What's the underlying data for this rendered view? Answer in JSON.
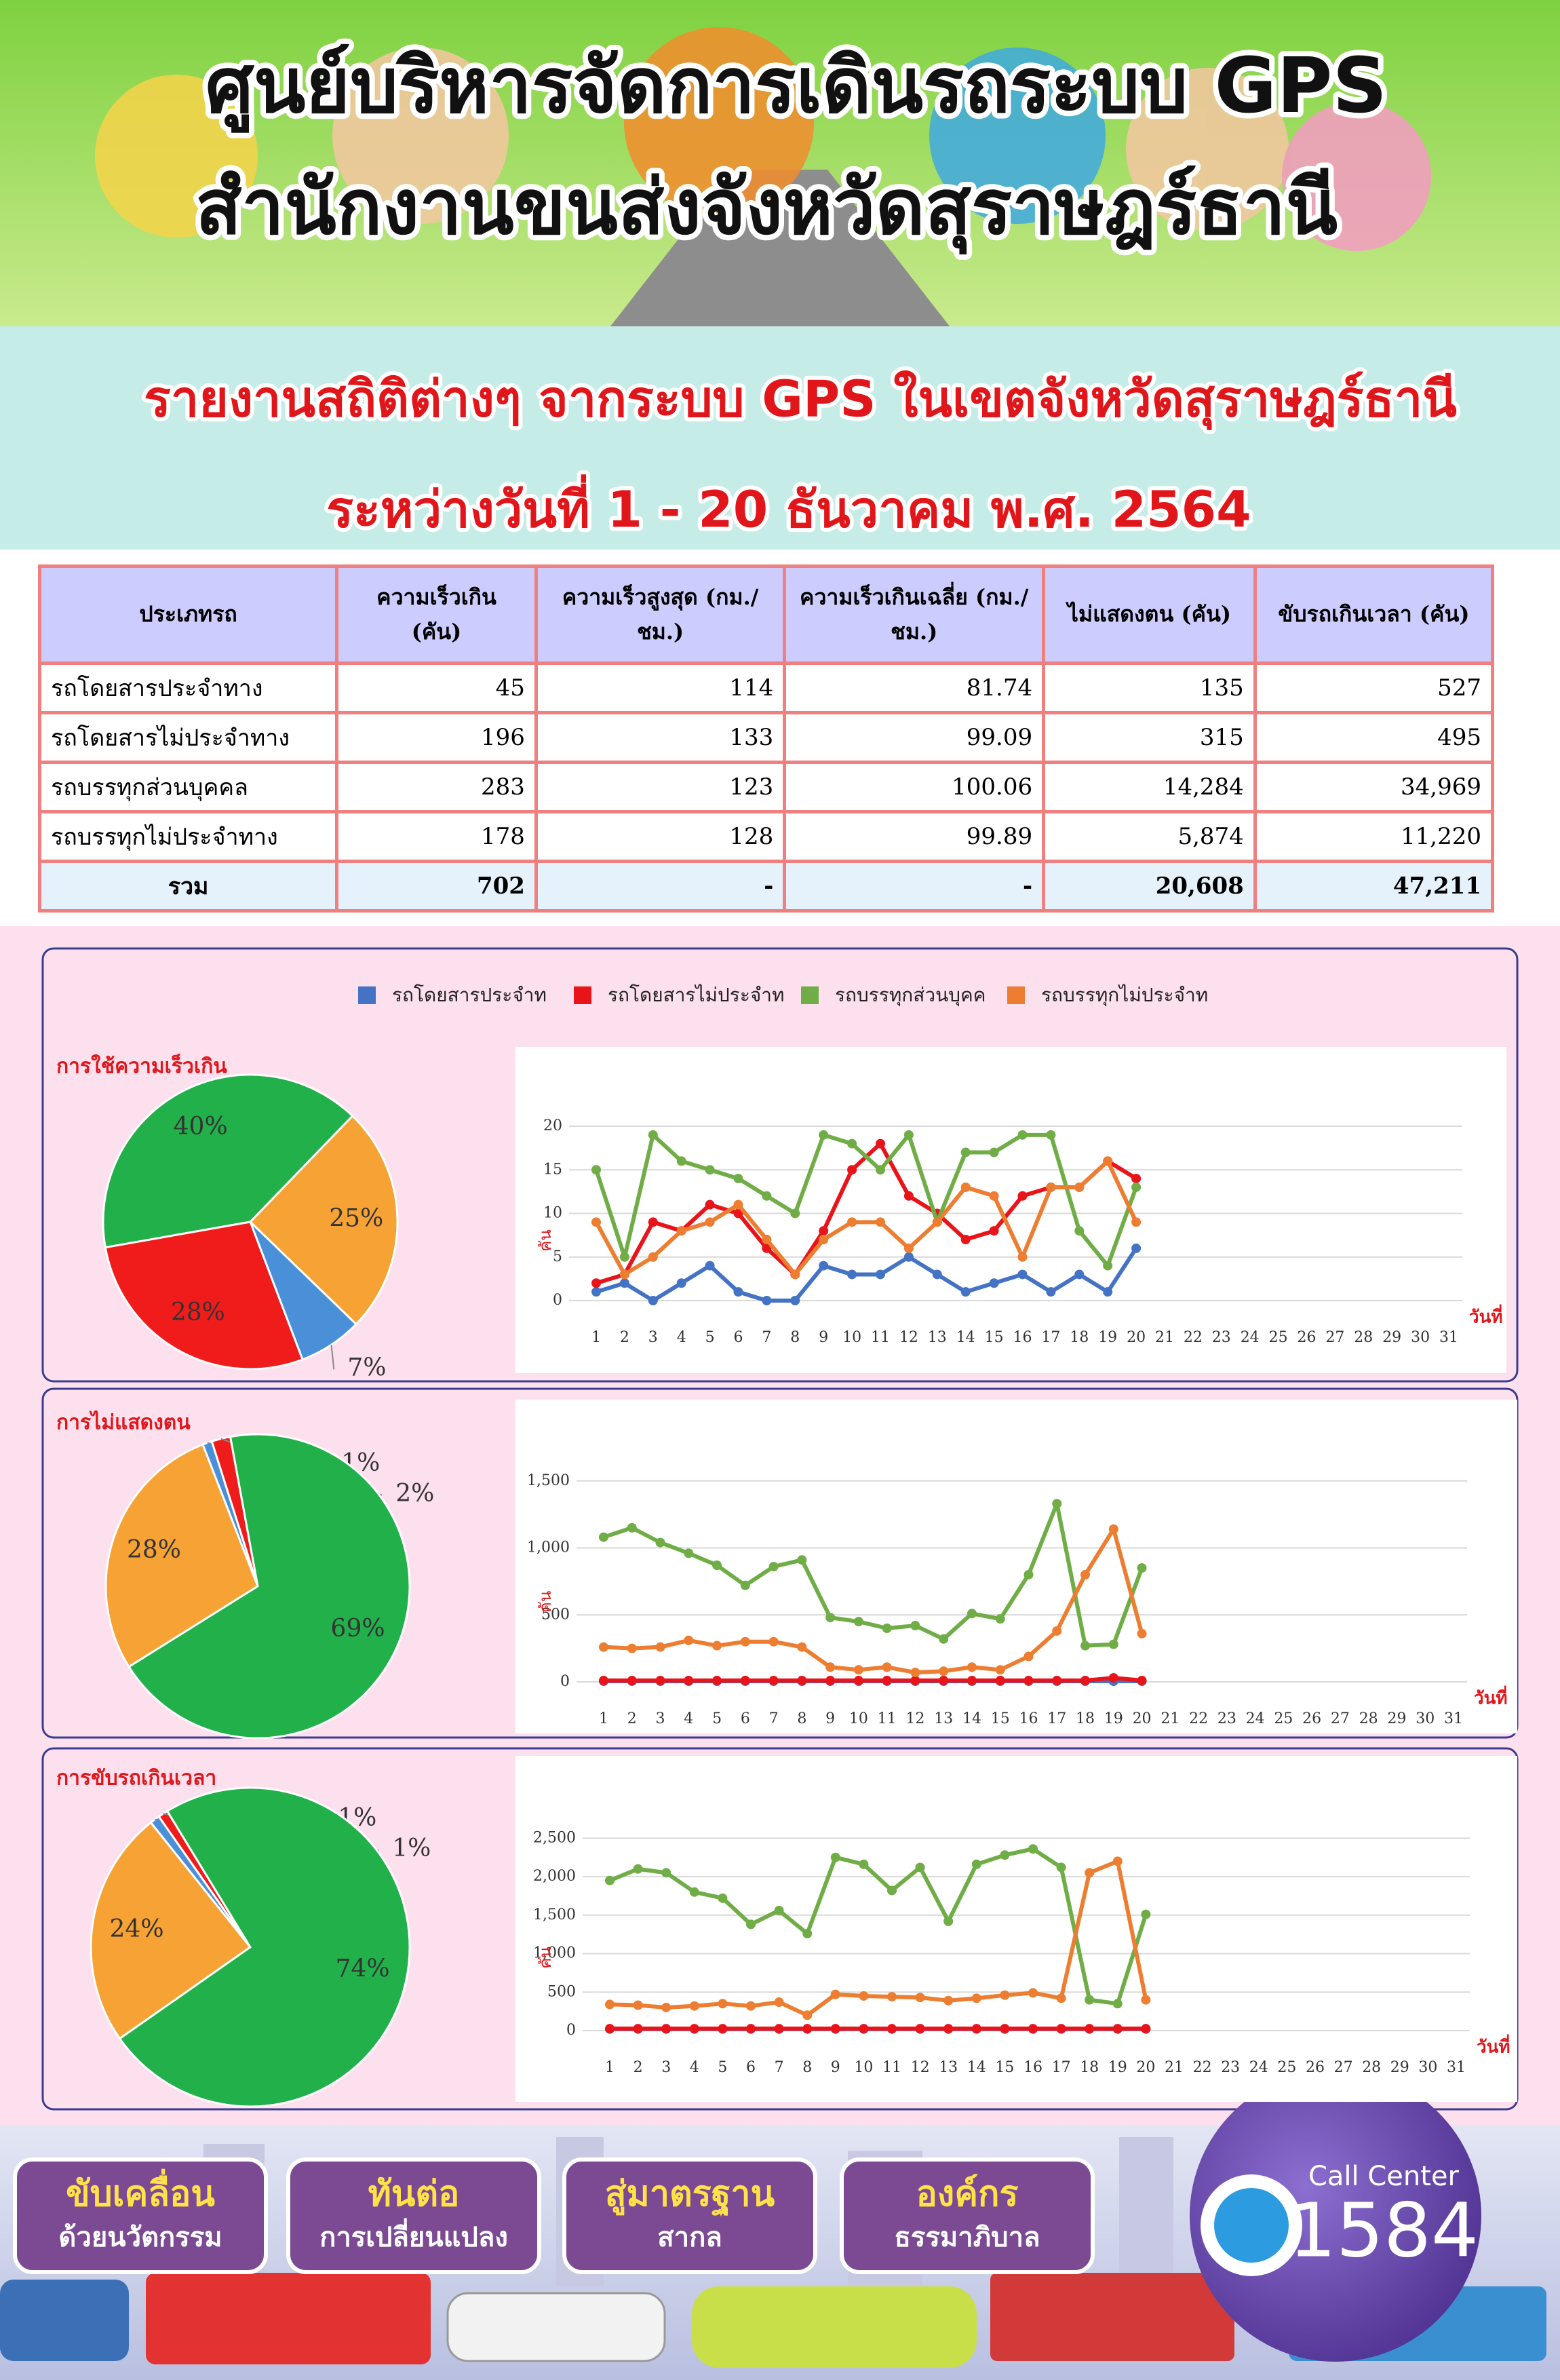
{
  "header": {
    "title_lines": [
      "ศูนย์บริหารจัดการเดินรถระบบ GPS",
      "สำนักงานขนส่งจังหวัดสุราษฎร์ธานี"
    ],
    "subtitle_lines": [
      "รายงานสถิติต่างๆ จากระบบ GPS ในเขตจังหวัดสุราษฎร์ธานี",
      "ระหว่างวันที่ 1 - 20 ธันวาคม พ.ศ. 2564"
    ]
  },
  "table": {
    "columns": [
      "ประเภทรถ",
      "ความเร็วเกิน (คัน)",
      "ความเร็วสูงสุด (กม./ชม.)",
      "ความเร็วเกินเฉลี่ย (กม./ชม.)",
      "ไม่แสดงตน (คัน)",
      "ขับรถเกินเวลา (คัน)"
    ],
    "rows": [
      [
        "รถโดยสารประจำทาง",
        "45",
        "114",
        "81.74",
        "135",
        "527"
      ],
      [
        "รถโดยสารไม่ประจำทาง",
        "196",
        "133",
        "99.09",
        "315",
        "495"
      ],
      [
        "รถบรรทุกส่วนบุคคล",
        "283",
        "123",
        "100.06",
        "14,284",
        "34,969"
      ],
      [
        "รถบรรทุกไม่ประจำทาง",
        "178",
        "128",
        "99.89",
        "5,874",
        "11,220"
      ]
    ],
    "total": [
      "รวม",
      "702",
      "-",
      "-",
      "20,608",
      "47,211"
    ]
  },
  "chart_data": [
    {
      "type": "pie",
      "title": "การใช้ความเร็วเกิน",
      "values": [
        40,
        25,
        7,
        28
      ],
      "value_labels": [
        "40%",
        "25%",
        "7%",
        "28%"
      ],
      "colors": [
        "#22b04b",
        "#f7a234",
        "#4a90d9",
        "#f01c1c"
      ]
    },
    {
      "type": "line",
      "xlabel": "วันที่",
      "ylabel": "คัน",
      "x": [
        1,
        2,
        3,
        4,
        5,
        6,
        7,
        8,
        9,
        10,
        11,
        12,
        13,
        14,
        15,
        16,
        17,
        18,
        19,
        20
      ],
      "xlim": [
        1,
        31
      ],
      "xticks": [
        1,
        2,
        3,
        4,
        5,
        6,
        7,
        8,
        9,
        10,
        11,
        12,
        13,
        14,
        15,
        16,
        17,
        18,
        19,
        20,
        21,
        22,
        23,
        24,
        25,
        26,
        27,
        28,
        29,
        30,
        31
      ],
      "ylim": [
        0,
        20
      ],
      "yticks": [
        0,
        5,
        10,
        15,
        20
      ],
      "grid": true,
      "series": [
        {
          "name": "รถโดยสารประจำท",
          "color": "#4472c4",
          "values": [
            1,
            2,
            0,
            2,
            4,
            1,
            0,
            0,
            4,
            3,
            3,
            5,
            3,
            1,
            2,
            3,
            1,
            3,
            1,
            6
          ]
        },
        {
          "name": "รถโดยสารไม่ประจำท",
          "color": "#e8141a",
          "values": [
            2,
            3,
            9,
            8,
            11,
            10,
            6,
            3,
            8,
            15,
            18,
            12,
            10,
            7,
            8,
            12,
            13,
            13,
            16,
            14
          ]
        },
        {
          "name": "รถบรรทุกส่วนบุคค",
          "color": "#70ad47",
          "values": [
            15,
            5,
            19,
            16,
            15,
            14,
            12,
            10,
            19,
            18,
            15,
            19,
            9,
            17,
            17,
            19,
            19,
            8,
            4,
            13
          ]
        },
        {
          "name": "รถบรรทุกไม่ประจำท",
          "color": "#ed7d31",
          "values": [
            9,
            3,
            5,
            8,
            9,
            11,
            7,
            3,
            7,
            9,
            9,
            6,
            9,
            13,
            12,
            5,
            13,
            13,
            16,
            9
          ]
        }
      ]
    },
    {
      "type": "pie",
      "title": "การไม่แสดงตน",
      "values": [
        28,
        1,
        2,
        69
      ],
      "value_labels": [
        "28%",
        "1%",
        "2%",
        "69%"
      ],
      "colors": [
        "#f7a234",
        "#4a90d9",
        "#f01c1c",
        "#22b04b"
      ]
    },
    {
      "type": "line",
      "xlabel": "วันที่",
      "ylabel": "คัน",
      "x": [
        1,
        2,
        3,
        4,
        5,
        6,
        7,
        8,
        9,
        10,
        11,
        12,
        13,
        14,
        15,
        16,
        17,
        18,
        19,
        20
      ],
      "xlim": [
        1,
        31
      ],
      "xticks": [
        1,
        2,
        3,
        4,
        5,
        6,
        7,
        8,
        9,
        10,
        11,
        12,
        13,
        14,
        15,
        16,
        17,
        18,
        19,
        20,
        21,
        22,
        23,
        24,
        25,
        26,
        27,
        28,
        29,
        30,
        31
      ],
      "ylim": [
        0,
        1600
      ],
      "yticks": [
        0,
        500,
        {
          "value": 1000,
          "label": "1,000"
        },
        {
          "value": 1500,
          "label": "1,500"
        }
      ],
      "grid": true,
      "series": [
        {
          "color": "#4472c4",
          "values": [
            5,
            5,
            5,
            5,
            5,
            5,
            5,
            5,
            5,
            5,
            5,
            5,
            5,
            5,
            5,
            5,
            5,
            5,
            5,
            5
          ]
        },
        {
          "color": "#e8141a",
          "values": [
            10,
            10,
            10,
            10,
            10,
            10,
            10,
            10,
            10,
            10,
            10,
            10,
            10,
            10,
            10,
            10,
            10,
            10,
            30,
            10
          ]
        },
        {
          "color": "#70ad47",
          "values": [
            1080,
            1150,
            1040,
            960,
            870,
            720,
            860,
            910,
            480,
            450,
            400,
            420,
            320,
            510,
            470,
            800,
            1330,
            270,
            280,
            850
          ]
        },
        {
          "color": "#ed7d31",
          "values": [
            260,
            250,
            260,
            310,
            270,
            300,
            300,
            260,
            110,
            90,
            110,
            70,
            80,
            110,
            90,
            190,
            380,
            800,
            1140,
            360
          ]
        }
      ]
    },
    {
      "type": "pie",
      "title": "การขับรถเกินเวลา",
      "values": [
        24,
        1,
        1,
        74
      ],
      "value_labels": [
        "24%",
        "1%",
        "1%",
        "74%"
      ],
      "colors": [
        "#f7a234",
        "#4a90d9",
        "#f01c1c",
        "#22b04b"
      ]
    },
    {
      "type": "line",
      "xlabel": "วันที่",
      "ylabel": "คัน",
      "x": [
        1,
        2,
        3,
        4,
        5,
        6,
        7,
        8,
        9,
        10,
        11,
        12,
        13,
        14,
        15,
        16,
        17,
        18,
        19,
        20
      ],
      "xlim": [
        1,
        31
      ],
      "xticks": [
        1,
        2,
        3,
        4,
        5,
        6,
        7,
        8,
        9,
        10,
        11,
        12,
        13,
        14,
        15,
        16,
        17,
        18,
        19,
        20,
        21,
        22,
        23,
        24,
        25,
        26,
        27,
        28,
        29,
        30,
        31
      ],
      "ylim": [
        0,
        2600
      ],
      "yticks": [
        0,
        500,
        {
          "value": 1000,
          "label": "1,000"
        },
        {
          "value": 1500,
          "label": "1,500"
        },
        {
          "value": 2000,
          "label": "2,000"
        },
        {
          "value": 2500,
          "label": "2,500"
        }
      ],
      "grid": true,
      "series": [
        {
          "color": "#4472c4",
          "values": [
            20,
            20,
            20,
            20,
            20,
            20,
            20,
            20,
            20,
            20,
            20,
            20,
            20,
            20,
            20,
            20,
            20,
            20,
            20,
            20
          ]
        },
        {
          "color": "#e8141a",
          "values": [
            25,
            25,
            25,
            25,
            25,
            25,
            25,
            25,
            25,
            25,
            25,
            25,
            25,
            25,
            25,
            25,
            25,
            25,
            25,
            25
          ]
        },
        {
          "color": "#70ad47",
          "values": [
            1950,
            2100,
            2050,
            1800,
            1720,
            1380,
            1560,
            1260,
            2250,
            2160,
            1820,
            2120,
            1420,
            2160,
            2280,
            2360,
            2120,
            400,
            350,
            1510
          ]
        },
        {
          "color": "#ed7d31",
          "values": [
            340,
            330,
            300,
            320,
            350,
            320,
            370,
            200,
            470,
            450,
            440,
            430,
            390,
            420,
            460,
            490,
            420,
            2050,
            2200,
            400
          ]
        }
      ]
    }
  ],
  "footer": {
    "buttons": [
      [
        "ขับเคลื่อน",
        "ด้วยนวัตกรรม"
      ],
      [
        "ทันต่อ",
        "การเปลี่ยนแปลง"
      ],
      [
        "สู่มาตรฐาน",
        "สากล"
      ],
      [
        "องค์กร",
        "ธรรมาภิบาล"
      ]
    ],
    "call_center": {
      "label": "Call Center",
      "number": "1584"
    }
  }
}
